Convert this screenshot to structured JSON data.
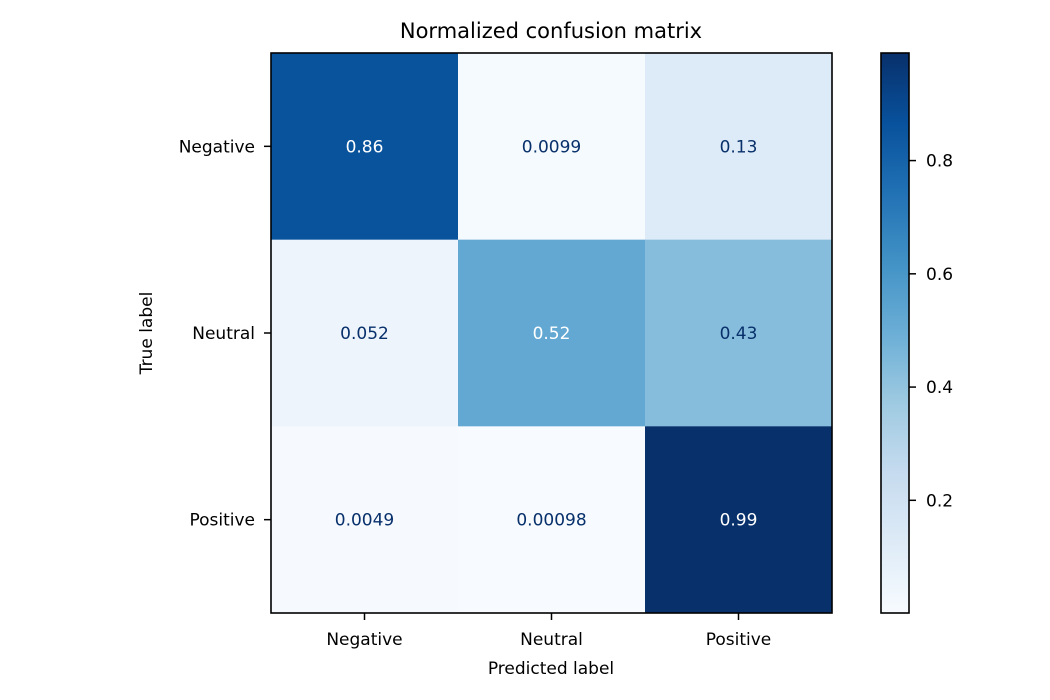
{
  "chart_data": {
    "type": "heatmap",
    "title": "Normalized confusion matrix",
    "xlabel": "Predicted label",
    "ylabel": "True label",
    "x_categories": [
      "Negative",
      "Neutral",
      "Positive"
    ],
    "y_categories": [
      "Negative",
      "Neutral",
      "Positive"
    ],
    "values": [
      [
        0.86,
        0.0099,
        0.13
      ],
      [
        0.052,
        0.52,
        0.43
      ],
      [
        0.0049,
        0.00098,
        0.99
      ]
    ],
    "value_labels": [
      [
        "0.86",
        "0.0099",
        "0.13"
      ],
      [
        "0.052",
        "0.52",
        "0.43"
      ],
      [
        "0.0049",
        "0.00098",
        "0.99"
      ]
    ],
    "colormap": "Blues",
    "colorbar": {
      "range": [
        0.00098,
        0.99
      ],
      "ticks": [
        0.2,
        0.4,
        0.6,
        0.8
      ],
      "tick_labels": [
        "0.2",
        "0.4",
        "0.6",
        "0.8"
      ]
    }
  }
}
